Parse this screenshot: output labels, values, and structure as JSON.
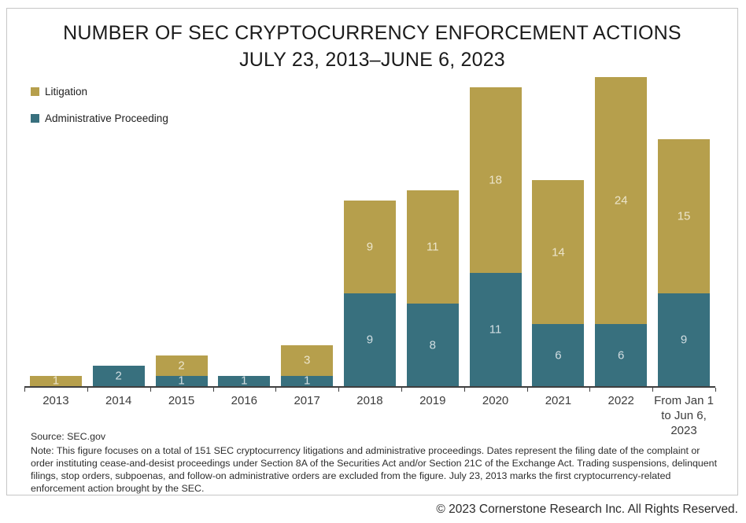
{
  "figure": {
    "title_line1": "NUMBER OF SEC CRYPTOCURRENCY ENFORCEMENT ACTIONS",
    "title_line2": "JULY 23, 2013–JUNE 6, 2023",
    "source": "Source: SEC.gov",
    "note": "Note: This figure focuses on a total of 151 SEC cryptocurrency litigations and administrative proceedings. Dates represent the filing date of the complaint or order instituting cease-and-desist proceedings under Section 8A of the Securities Act and/or Section 21C of the Exchange Act. Trading suspensions, delinquent filings, stop orders, subpoenas, and follow-on administrative orders are excluded from the figure. July 23, 2013 marks the first cryptocurrency-related enforcement action brought by the SEC.",
    "copyright": "© 2023 Cornerstone Research Inc. All Rights Reserved."
  },
  "legend": [
    {
      "label": "Litigation",
      "color": "#b69f4c"
    },
    {
      "label": "Administrative Proceeding",
      "color": "#38707e"
    }
  ],
  "chart_data": {
    "type": "bar",
    "stacked": true,
    "title": "NUMBER OF SEC CRYPTOCURRENCY ENFORCEMENT ACTIONS",
    "subtitle": "JULY 23, 2013–JUNE 6, 2023",
    "categories": [
      "2013",
      "2014",
      "2015",
      "2016",
      "2017",
      "2018",
      "2019",
      "2020",
      "2021",
      "2022",
      "From Jan 1 to Jun 6, 2023"
    ],
    "x_labels": [
      "2013",
      "2014",
      "2015",
      "2016",
      "2017",
      "2018",
      "2019",
      "2020",
      "2021",
      "2022",
      "From Jan 1\nto Jun 6,\n2023"
    ],
    "series": [
      {
        "name": "Administrative Proceeding",
        "color": "#38707e",
        "values": [
          0,
          2,
          1,
          1,
          1,
          9,
          8,
          11,
          6,
          6,
          9
        ]
      },
      {
        "name": "Litigation",
        "color": "#b69f4c",
        "values": [
          1,
          0,
          2,
          0,
          3,
          9,
          11,
          18,
          14,
          24,
          15
        ]
      }
    ],
    "totals": [
      1,
      2,
      3,
      1,
      4,
      18,
      19,
      29,
      20,
      30,
      24
    ],
    "grand_total": 151,
    "ylim": [
      0,
      30
    ],
    "grid": false,
    "legend_position": "top-left",
    "value_labels": true
  }
}
